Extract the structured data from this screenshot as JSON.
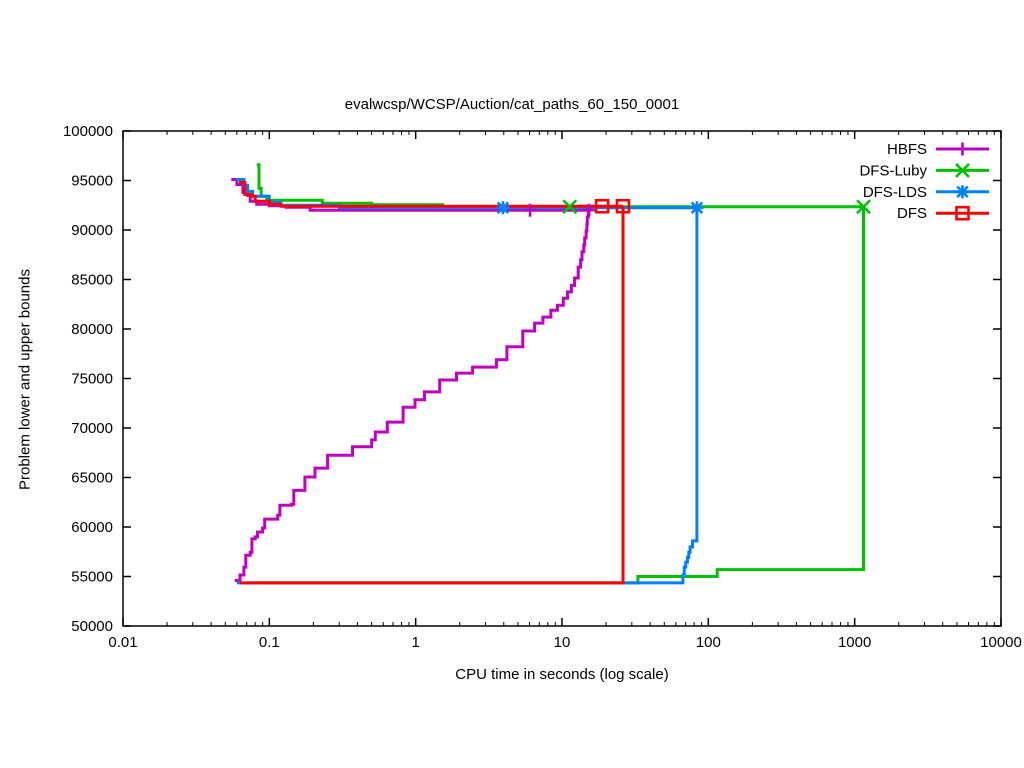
{
  "chart_data": {
    "type": "line",
    "title": "evalwcsp/WCSP/Auction/cat_paths_60_150_0001",
    "xlabel": "CPU time in seconds (log scale)",
    "ylabel": "Problem lower and upper bounds",
    "x_scale": "log",
    "xlim": [
      0.01,
      10000
    ],
    "ylim": [
      50000,
      100000
    ],
    "grid": "off",
    "legend_position": "top-right-inside",
    "x_ticks": [
      0.01,
      0.1,
      1,
      10,
      100,
      1000,
      10000
    ],
    "x_tick_labels": [
      "0.01",
      "0.1",
      "1",
      "10",
      "100",
      "1000",
      "10000"
    ],
    "y_ticks": [
      50000,
      55000,
      60000,
      65000,
      70000,
      75000,
      80000,
      85000,
      90000,
      95000,
      100000
    ],
    "y_tick_labels": [
      "50000",
      "55000",
      "60000",
      "65000",
      "70000",
      "75000",
      "80000",
      "85000",
      "90000",
      "95000",
      "100000"
    ],
    "series": [
      {
        "name": "HBFS",
        "color": "#C000C0",
        "marker": "plus",
        "upper_bound": [
          [
            0.055,
            95100
          ],
          [
            0.06,
            94600
          ],
          [
            0.066,
            93800
          ],
          [
            0.071,
            93500
          ],
          [
            0.074,
            92900
          ],
          [
            0.082,
            92600
          ],
          [
            0.1,
            92450
          ],
          [
            0.13,
            92300
          ],
          [
            0.19,
            92000
          ],
          [
            15.3,
            92000
          ]
        ],
        "lower_bound": [
          [
            0.058,
            54600
          ],
          [
            0.063,
            55150
          ],
          [
            0.067,
            55950
          ],
          [
            0.069,
            57150
          ],
          [
            0.074,
            57450
          ],
          [
            0.076,
            58800
          ],
          [
            0.08,
            59000
          ],
          [
            0.083,
            59500
          ],
          [
            0.09,
            59900
          ],
          [
            0.093,
            60800
          ],
          [
            0.114,
            61200
          ],
          [
            0.118,
            62200
          ],
          [
            0.142,
            62300
          ],
          [
            0.147,
            63700
          ],
          [
            0.175,
            65050
          ],
          [
            0.205,
            65950
          ],
          [
            0.25,
            67250
          ],
          [
            0.37,
            68100
          ],
          [
            0.5,
            68800
          ],
          [
            0.53,
            69600
          ],
          [
            0.64,
            70600
          ],
          [
            0.82,
            72100
          ],
          [
            0.99,
            72850
          ],
          [
            1.15,
            73650
          ],
          [
            1.46,
            74850
          ],
          [
            1.9,
            75550
          ],
          [
            2.45,
            76150
          ],
          [
            3.56,
            76900
          ],
          [
            4.2,
            78200
          ],
          [
            5.4,
            79800
          ],
          [
            6.5,
            80600
          ],
          [
            7.4,
            81200
          ],
          [
            8.4,
            81900
          ],
          [
            9.3,
            82400
          ],
          [
            10.2,
            83100
          ],
          [
            10.9,
            83750
          ],
          [
            11.6,
            84400
          ],
          [
            12.2,
            85150
          ],
          [
            12.9,
            86250
          ],
          [
            13.4,
            87000
          ],
          [
            13.7,
            87800
          ],
          [
            14.1,
            88500
          ],
          [
            14.3,
            89200
          ],
          [
            14.6,
            89900
          ],
          [
            14.8,
            90600
          ],
          [
            14.9,
            91300
          ],
          [
            15.1,
            91700
          ],
          [
            15.3,
            92000
          ]
        ],
        "marker_points": [
          [
            6.05,
            92000
          ],
          [
            15.3,
            92000
          ]
        ]
      },
      {
        "name": "DFS-Luby",
        "color": "#00C000",
        "marker": "cross",
        "upper_bound": [
          [
            0.082,
            96600
          ],
          [
            0.085,
            94200
          ],
          [
            0.088,
            93400
          ],
          [
            0.096,
            93000
          ],
          [
            0.23,
            92700
          ],
          [
            0.5,
            92550
          ],
          [
            1.53,
            92350
          ],
          [
            1150,
            92350
          ]
        ],
        "lower_bound": [
          [
            0.085,
            54350
          ],
          [
            33,
            55000
          ],
          [
            115,
            55700
          ],
          [
            1150,
            92350
          ]
        ],
        "marker_points": [
          [
            11.3,
            92350
          ],
          [
            1150,
            92350
          ]
        ]
      },
      {
        "name": "DFS-LDS",
        "color": "#0080FF",
        "marker": "star",
        "upper_bound": [
          [
            0.059,
            95100
          ],
          [
            0.067,
            94500
          ],
          [
            0.071,
            93900
          ],
          [
            0.077,
            93400
          ],
          [
            0.1,
            92800
          ],
          [
            0.12,
            92500
          ],
          [
            0.3,
            92250
          ],
          [
            83.6,
            92250
          ]
        ],
        "lower_bound": [
          [
            0.06,
            54350
          ],
          [
            67,
            55150
          ],
          [
            68.5,
            55950
          ],
          [
            70,
            56450
          ],
          [
            72,
            56950
          ],
          [
            73.5,
            57450
          ],
          [
            75,
            57980
          ],
          [
            78,
            58600
          ],
          [
            83.6,
            92250
          ]
        ],
        "marker_points": [
          [
            3.95,
            92250
          ],
          [
            83.6,
            92250
          ]
        ]
      },
      {
        "name": "DFS",
        "color": "#FF0000",
        "marker": "open-square",
        "upper_bound": [
          [
            0.062,
            94800
          ],
          [
            0.068,
            93600
          ],
          [
            0.075,
            93400
          ],
          [
            0.08,
            92900
          ],
          [
            0.1,
            92600
          ],
          [
            0.12,
            92400
          ],
          [
            26.1,
            92400
          ]
        ],
        "lower_bound": [
          [
            0.063,
            54350
          ],
          [
            26.1,
            92400
          ]
        ],
        "marker_points": [
          [
            18.8,
            92400
          ],
          [
            26.1,
            92400
          ]
        ]
      }
    ]
  }
}
